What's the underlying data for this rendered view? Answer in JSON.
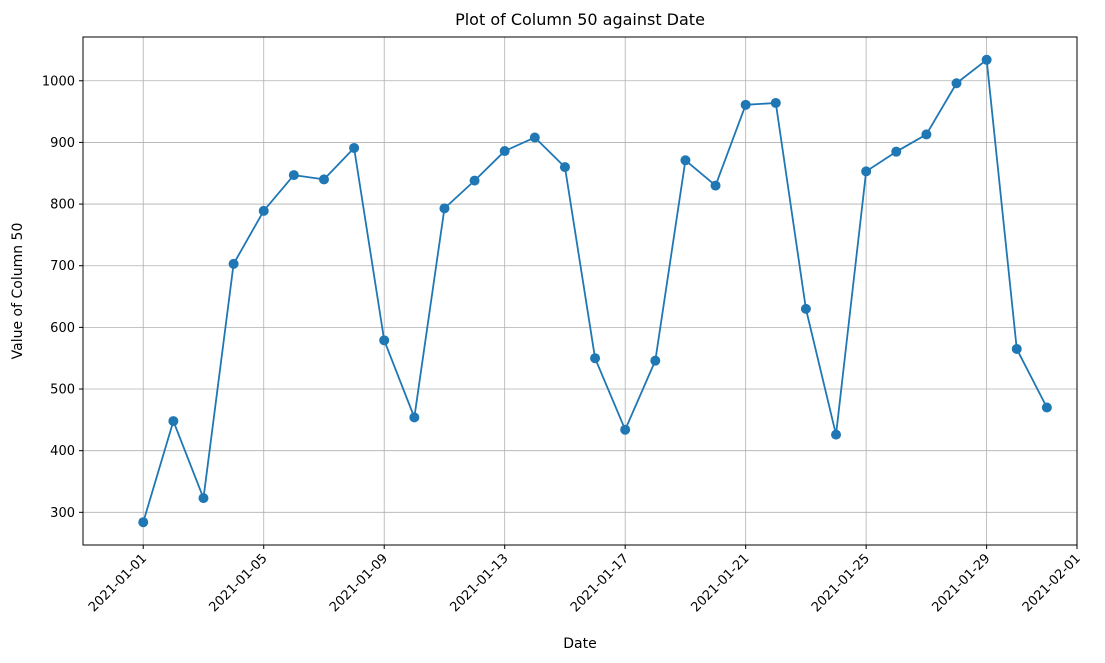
{
  "chart_data": {
    "type": "line",
    "title": "Plot of Column 50 against Date",
    "xlabel": "Date",
    "ylabel": "Value of Column 50",
    "x": [
      "2021-01-01",
      "2021-01-02",
      "2021-01-03",
      "2021-01-04",
      "2021-01-05",
      "2021-01-06",
      "2021-01-07",
      "2021-01-08",
      "2021-01-09",
      "2021-01-10",
      "2021-01-11",
      "2021-01-12",
      "2021-01-13",
      "2021-01-14",
      "2021-01-15",
      "2021-01-16",
      "2021-01-17",
      "2021-01-18",
      "2021-01-19",
      "2021-01-20",
      "2021-01-21",
      "2021-01-22",
      "2021-01-23",
      "2021-01-24",
      "2021-01-25",
      "2021-01-26",
      "2021-01-27",
      "2021-01-28",
      "2021-01-29",
      "2021-01-30",
      "2021-01-31"
    ],
    "series": [
      {
        "values": [
          284,
          448,
          323,
          703,
          789,
          847,
          840,
          891,
          579,
          454,
          793,
          838,
          886,
          908,
          860,
          550,
          434,
          546,
          871,
          830,
          961,
          964,
          630,
          426,
          853,
          885,
          913,
          996,
          1034,
          565,
          470
        ],
        "color": "#1f77b4",
        "marker": "circle"
      }
    ],
    "xticks": [
      "2021-01-01",
      "2021-01-05",
      "2021-01-09",
      "2021-01-13",
      "2021-01-17",
      "2021-01-21",
      "2021-01-25",
      "2021-01-29",
      "2021-02-01"
    ],
    "yticks": [
      300,
      400,
      500,
      600,
      700,
      800,
      900,
      1000
    ],
    "xlim": [
      "2020-12-30",
      "2021-02-01"
    ],
    "ylim": [
      247,
      1071
    ],
    "grid": true,
    "x_tick_rotation": 45
  }
}
